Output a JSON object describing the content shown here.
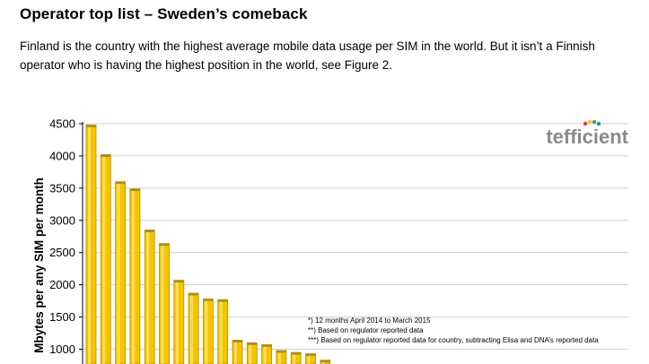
{
  "page": {
    "heading": "Operator top list – Sweden’s comeback",
    "intro": "Finland is the country with the highest average mobile data usage per SIM in the world. But it isn’t a Finnish operator who is having the highest position in the world, see Figure 2."
  },
  "brand": {
    "text": "tefficient",
    "dot_colors": [
      "#e53935",
      "#fbc02d",
      "#43a047",
      "#1e88e5"
    ]
  },
  "colors": {
    "bar": "#f5c400",
    "bar_edge": "#b78f00",
    "bar_highlight": "#ffe56a",
    "grid": "#cfcfcf"
  },
  "chart_data": {
    "type": "bar",
    "title": "",
    "xlabel": "",
    "ylabel": "Mbytes per any SIM per month",
    "ylim": [
      700,
      4500
    ],
    "yticks": [
      1000,
      1500,
      2000,
      2500,
      3000,
      3500,
      4000,
      4500
    ],
    "grid": true,
    "values": [
      4480,
      4020,
      3600,
      3490,
      2850,
      2640,
      2070,
      1870,
      1780,
      1770,
      1140,
      1100,
      1070,
      980,
      950,
      930,
      830
    ],
    "notes": [
      "*) 12 months April 2014 to March 2015",
      "**) Based on regulator reported data",
      "***) Based on regulator reported data for country, subtracting Elisa and DNA’s reported data"
    ]
  }
}
